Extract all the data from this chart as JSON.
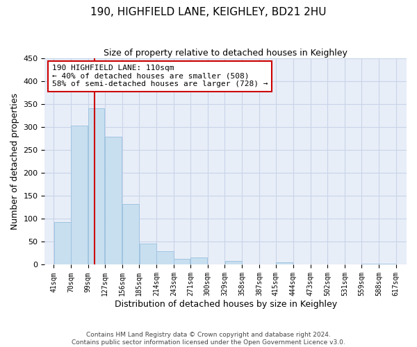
{
  "title": "190, HIGHFIELD LANE, KEIGHLEY, BD21 2HU",
  "subtitle": "Size of property relative to detached houses in Keighley",
  "xlabel": "Distribution of detached houses by size in Keighley",
  "ylabel": "Number of detached properties",
  "bar_left_edges": [
    41,
    70,
    99,
    127,
    156,
    185,
    214,
    243,
    271,
    300,
    329,
    358,
    387,
    415,
    444,
    473,
    502,
    531,
    559,
    588
  ],
  "bar_widths": [
    29,
    29,
    28,
    29,
    29,
    29,
    29,
    28,
    29,
    29,
    29,
    29,
    28,
    29,
    29,
    29,
    29,
    28,
    29,
    29
  ],
  "bar_heights": [
    93,
    303,
    341,
    279,
    132,
    46,
    30,
    13,
    16,
    0,
    8,
    0,
    0,
    5,
    0,
    0,
    0,
    0,
    2,
    2
  ],
  "bar_color": "#c8dff0",
  "bar_edge_color": "#a0c4e0",
  "vline_x": 110,
  "vline_color": "#cc0000",
  "annotation_title": "190 HIGHFIELD LANE: 110sqm",
  "annotation_line1": "← 40% of detached houses are smaller (508)",
  "annotation_line2": "58% of semi-detached houses are larger (728) →",
  "annotation_box_color": "#cc0000",
  "ylim": [
    0,
    450
  ],
  "yticks": [
    0,
    50,
    100,
    150,
    200,
    250,
    300,
    350,
    400,
    450
  ],
  "xtick_labels": [
    "41sqm",
    "70sqm",
    "99sqm",
    "127sqm",
    "156sqm",
    "185sqm",
    "214sqm",
    "243sqm",
    "271sqm",
    "300sqm",
    "329sqm",
    "358sqm",
    "387sqm",
    "415sqm",
    "444sqm",
    "473sqm",
    "502sqm",
    "531sqm",
    "559sqm",
    "588sqm",
    "617sqm"
  ],
  "xtick_positions": [
    41,
    70,
    99,
    127,
    156,
    185,
    214,
    243,
    271,
    300,
    329,
    358,
    387,
    415,
    444,
    473,
    502,
    531,
    559,
    588,
    617
  ],
  "footer_line1": "Contains HM Land Registry data © Crown copyright and database right 2024.",
  "footer_line2": "Contains public sector information licensed under the Open Government Licence v3.0.",
  "bg_color": "#ffffff",
  "ax_bg_color": "#e8eef8",
  "grid_color": "#c8d4e8"
}
